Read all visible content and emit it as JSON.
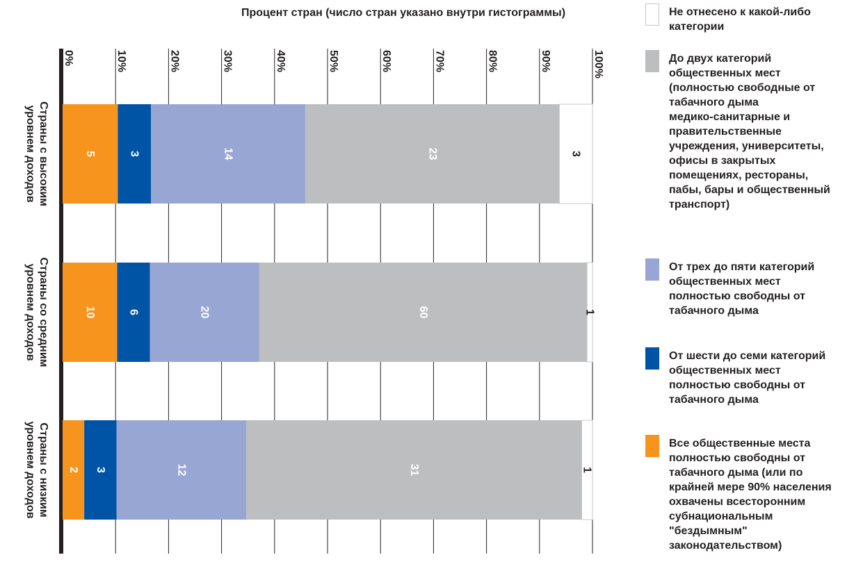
{
  "chart_data": {
    "type": "bar",
    "stacked": true,
    "orientation": "horizontal-bars, figure rotated 90°",
    "title": "Процент стран (число стран указано внутри гистограммы)",
    "categories": [
      "Страны с высоким уровнем доходов",
      "Страны со средним уровнем доходов",
      "Страны с низким уровнем доходов"
    ],
    "category_lines": [
      [
        "Страны с высоким",
        "уровнем доходов"
      ],
      [
        "Страны со средним",
        "уровнем доходов"
      ],
      [
        "Страны с низким",
        "уровнем доходов"
      ]
    ],
    "series": [
      {
        "name": "Все общественные места полностью свободны от табачного дыма (или по крайней мере 90% населения охвачены всесторонним субнациональным \"бездымным\" законодательством)",
        "values": [
          5,
          10,
          2
        ],
        "color": "#f7941d"
      },
      {
        "name": "От шести до семи категорий общественных мест полностью свободны от табачного дыма",
        "values": [
          3,
          6,
          3
        ],
        "color": "#0054a6"
      },
      {
        "name": "От трех до пяти категорий общественных мест полностью свободны от табачного дыма",
        "values": [
          14,
          20,
          12
        ],
        "color": "#98a6d4"
      },
      {
        "name": "До двух категорий общественных мест (полностью свободные от табачного дыма медико-санитарные и правительственные учреждения, университеты, офисы в закрытых помещениях, рестораны, пабы, бары и общественный транспорт)",
        "values": [
          23,
          60,
          31
        ],
        "color": "#bcbec0"
      },
      {
        "name": "Не отнесено к какой-либо категории",
        "values": [
          3,
          1,
          1
        ],
        "color": "#ffffff"
      }
    ],
    "value_axis": {
      "range": [
        0,
        100
      ],
      "ticks": [
        "0%",
        "10%",
        "20%",
        "30%",
        "40%",
        "50%",
        "60%",
        "70%",
        "80%",
        "90%",
        "100%"
      ]
    },
    "grid": true,
    "legend_position": "right"
  },
  "legend": [
    {
      "lines": [
        "Не отнесено к какой-либо",
        "категории"
      ],
      "color": "#ffffff"
    },
    {
      "lines": [
        "До двух категорий",
        "общественных мест",
        "(полностью свободные от",
        "табачного дыма",
        "медико-санитарные и",
        "правительственные",
        "учреждения, университеты,",
        "офисы в закрытых",
        "помещениях, рестораны,",
        "пабы, бары и общественный",
        "транспорт)"
      ],
      "color": "#bcbec0"
    },
    {
      "lines": [
        "От трех до пяти категорий",
        "общественных мест",
        "полностью свободны от",
        "табачного дыма"
      ],
      "color": "#98a6d4"
    },
    {
      "lines": [
        "От шести до семи категорий",
        "общественных мест",
        "полностью свободны от",
        "табачного дыма"
      ],
      "color": "#0054a6"
    },
    {
      "lines": [
        "Все общественные места",
        "полностью свободны от",
        "табачного дыма (или по",
        "крайней мере 90% населения",
        "охвачены всесторонним",
        "субнациональным",
        "\"бездымным\"",
        "законодательством)"
      ],
      "color": "#f7941d"
    }
  ]
}
